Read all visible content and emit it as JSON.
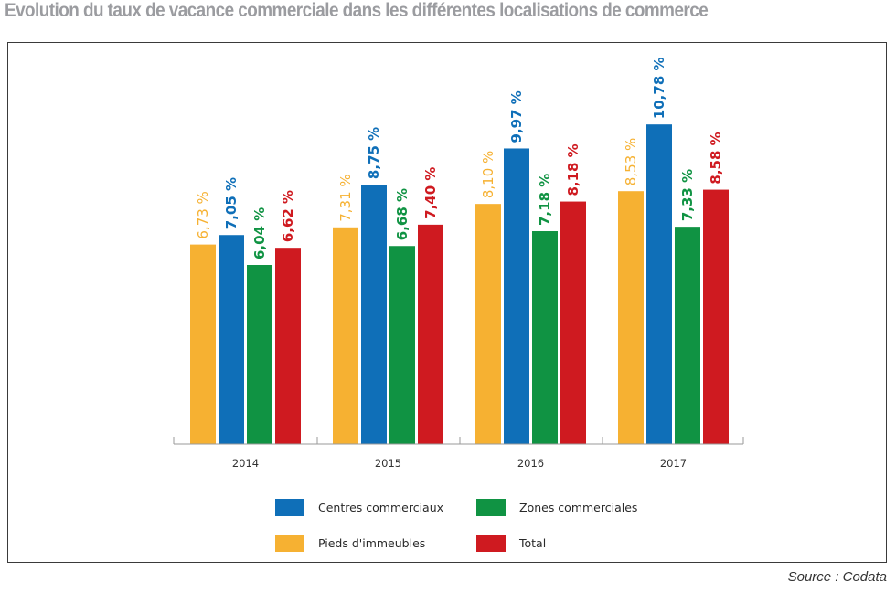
{
  "page": {
    "title": "Evolution du taux de vacance commerciale dans les différentes localisations de commerce",
    "source": "Source : Codata"
  },
  "chart_data": {
    "type": "bar",
    "title": "",
    "xlabel": "",
    "ylabel": "",
    "categories": [
      "2014",
      "2015",
      "2016",
      "2017"
    ],
    "ylim": [
      0,
      12
    ],
    "grid": false,
    "legend_position": "bottom",
    "series": [
      {
        "name": "Pieds d'immeubles",
        "color": "#f6b132",
        "values": [
          6.73,
          7.31,
          8.1,
          8.53
        ],
        "labels": [
          "6,73 %",
          "7,31 %",
          "8,10 %",
          "8,53 %"
        ]
      },
      {
        "name": "Centres commerciaux",
        "color": "#0f6fb8",
        "values": [
          7.05,
          8.75,
          9.97,
          10.78
        ],
        "labels": [
          "7,05 %",
          "8,75 %",
          "9,97 %",
          "10,78 %"
        ]
      },
      {
        "name": "Zones commerciales",
        "color": "#109343",
        "values": [
          6.04,
          6.68,
          7.18,
          7.33
        ],
        "labels": [
          "6,04 %",
          "6,68 %",
          "7,18 %",
          "7,33 %"
        ]
      },
      {
        "name": "Total",
        "color": "#cf1a20",
        "values": [
          6.62,
          7.4,
          8.18,
          8.58
        ],
        "labels": [
          "6,62 %",
          "7,40 %",
          "8,18 %",
          "8,58 %"
        ]
      }
    ],
    "legend": [
      {
        "series": 1
      },
      {
        "series": 2
      },
      {
        "series": 0
      },
      {
        "series": 3
      }
    ]
  }
}
